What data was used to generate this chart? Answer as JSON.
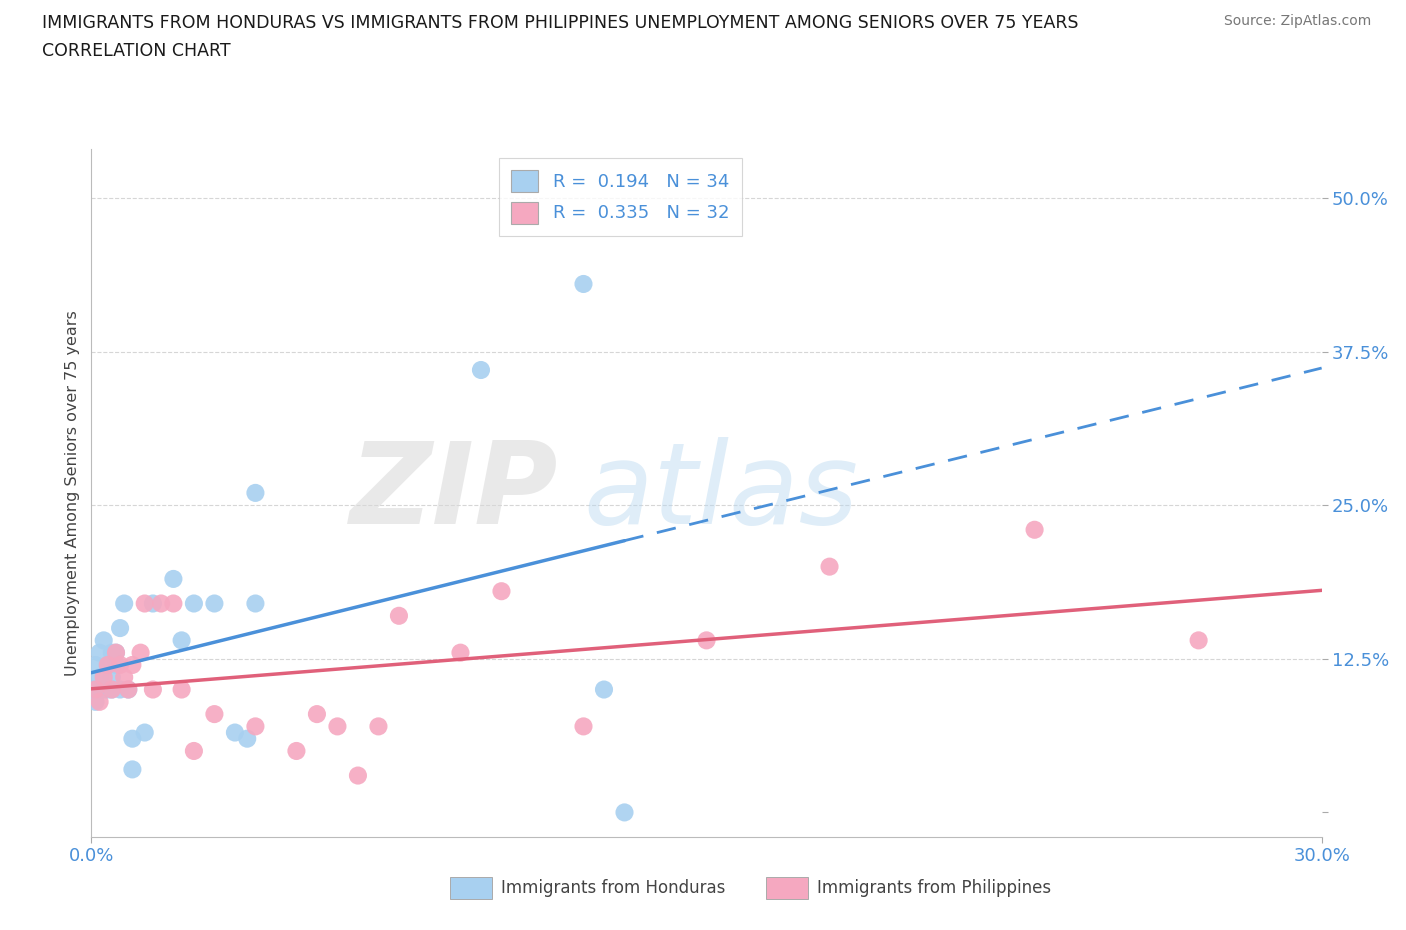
{
  "title_line1": "IMMIGRANTS FROM HONDURAS VS IMMIGRANTS FROM PHILIPPINES UNEMPLOYMENT AMONG SENIORS OVER 75 YEARS",
  "title_line2": "CORRELATION CHART",
  "source": "Source: ZipAtlas.com",
  "ylabel": "Unemployment Among Seniors over 75 years",
  "xlim": [
    0.0,
    0.3
  ],
  "ylim": [
    -0.02,
    0.54
  ],
  "ytick_vals": [
    0.0,
    0.125,
    0.25,
    0.375,
    0.5
  ],
  "ytick_labels": [
    "",
    "12.5%",
    "25.0%",
    "37.5%",
    "50.0%"
  ],
  "xtick_vals": [
    0.0,
    0.3
  ],
  "xtick_labels": [
    "0.0%",
    "30.0%"
  ],
  "R_honduras": 0.194,
  "N_honduras": 34,
  "R_philippines": 0.335,
  "N_philippines": 32,
  "color_honduras": "#a8d0f0",
  "color_philippines": "#f5a8c0",
  "color_trend_honduras": "#4a90d9",
  "color_trend_philippines": "#e0607a",
  "color_accent": "#4a90d9",
  "legend_label_honduras": "Immigrants from Honduras",
  "legend_label_philippines": "Immigrants from Philippines",
  "honduras_x": [
    0.0,
    0.001,
    0.001,
    0.002,
    0.002,
    0.003,
    0.003,
    0.004,
    0.004,
    0.005,
    0.005,
    0.005,
    0.006,
    0.006,
    0.007,
    0.007,
    0.008,
    0.009,
    0.01,
    0.01,
    0.013,
    0.015,
    0.02,
    0.022,
    0.025,
    0.03,
    0.035,
    0.038,
    0.04,
    0.04,
    0.095,
    0.12,
    0.125,
    0.13
  ],
  "honduras_y": [
    0.1,
    0.09,
    0.12,
    0.11,
    0.13,
    0.1,
    0.14,
    0.12,
    0.1,
    0.11,
    0.1,
    0.13,
    0.12,
    0.13,
    0.15,
    0.1,
    0.17,
    0.1,
    0.035,
    0.06,
    0.065,
    0.17,
    0.19,
    0.14,
    0.17,
    0.17,
    0.065,
    0.06,
    0.17,
    0.26,
    0.36,
    0.43,
    0.1,
    0.0
  ],
  "philippines_x": [
    0.001,
    0.002,
    0.003,
    0.004,
    0.005,
    0.006,
    0.007,
    0.008,
    0.009,
    0.01,
    0.012,
    0.013,
    0.015,
    0.017,
    0.02,
    0.022,
    0.025,
    0.03,
    0.04,
    0.05,
    0.055,
    0.06,
    0.065,
    0.07,
    0.075,
    0.09,
    0.1,
    0.12,
    0.15,
    0.18,
    0.23,
    0.27
  ],
  "philippines_y": [
    0.1,
    0.09,
    0.11,
    0.12,
    0.1,
    0.13,
    0.12,
    0.11,
    0.1,
    0.12,
    0.13,
    0.17,
    0.1,
    0.17,
    0.17,
    0.1,
    0.05,
    0.08,
    0.07,
    0.05,
    0.08,
    0.07,
    0.03,
    0.07,
    0.16,
    0.13,
    0.18,
    0.07,
    0.14,
    0.2,
    0.23,
    0.14
  ],
  "trend_h_solid_end": 0.13,
  "trend_h_dash_start": 0.13,
  "trend_h_dash_end": 0.3
}
